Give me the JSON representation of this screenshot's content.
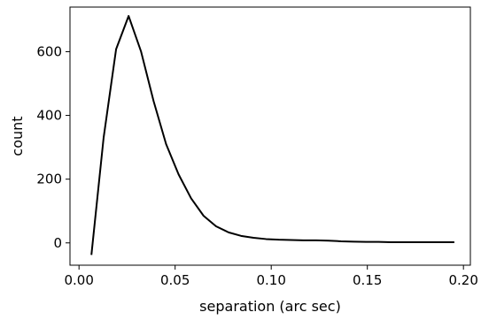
{
  "chart_data": {
    "type": "line",
    "title": "",
    "xlabel": "separation (arc sec)",
    "ylabel": "count",
    "xlim": [
      -0.0,
      0.2
    ],
    "ylim": [
      -70,
      740
    ],
    "xticks": [
      0.0,
      0.05,
      0.1,
      0.15,
      0.2
    ],
    "xtick_labels": [
      "0.00",
      "0.05",
      "0.10",
      "0.15",
      "0.20"
    ],
    "yticks": [
      0,
      200,
      400,
      600
    ],
    "ytick_labels": [
      "0",
      "200",
      "400",
      "600"
    ],
    "grid": false,
    "legend": null,
    "series": [
      {
        "color": "#000000",
        "x": [
          0.0065,
          0.0128,
          0.0193,
          0.0258,
          0.0323,
          0.0388,
          0.0453,
          0.0518,
          0.0583,
          0.0648,
          0.0713,
          0.0778,
          0.0843,
          0.0908,
          0.0973,
          0.1038,
          0.1103,
          0.1168,
          0.1233,
          0.1298,
          0.1363,
          0.1428,
          0.1493,
          0.1558,
          0.1623,
          0.1688,
          0.1753,
          0.1818,
          0.1883,
          0.1948
        ],
        "y": [
          -35,
          330,
          608,
          712,
          600,
          445,
          310,
          215,
          140,
          85,
          52,
          33,
          22,
          16,
          12,
          10,
          9,
          8,
          8,
          7,
          5,
          4,
          3,
          3,
          2,
          2,
          2,
          2,
          2,
          2
        ]
      }
    ]
  }
}
